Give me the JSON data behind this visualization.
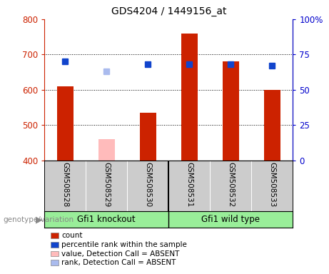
{
  "title": "GDS4204 / 1449156_at",
  "samples": [
    "GSM508528",
    "GSM508529",
    "GSM508530",
    "GSM508531",
    "GSM508532",
    "GSM508533"
  ],
  "count_values": [
    610,
    null,
    535,
    760,
    680,
    600
  ],
  "count_absent_values": [
    null,
    460,
    null,
    null,
    null,
    null
  ],
  "rank_values": [
    70,
    null,
    68,
    68,
    68,
    67
  ],
  "rank_absent_values": [
    null,
    63,
    null,
    null,
    null,
    null
  ],
  "left_ylim": [
    400,
    800
  ],
  "right_ylim": [
    0,
    100
  ],
  "left_yticks": [
    400,
    500,
    600,
    700,
    800
  ],
  "right_yticks": [
    0,
    25,
    50,
    75,
    100
  ],
  "right_yticklabels": [
    "0",
    "25",
    "50",
    "75",
    "100%"
  ],
  "bar_color": "#cc2200",
  "bar_absent_color": "#ffbbbb",
  "rank_color": "#1144cc",
  "rank_absent_color": "#aabbee",
  "group1_label": "Gfi1 knockout",
  "group2_label": "Gfi1 wild type",
  "group1_indices": [
    0,
    1,
    2
  ],
  "group2_indices": [
    3,
    4,
    5
  ],
  "group_bg_color": "#99ee99",
  "sample_area_color": "#cccccc",
  "legend_items": [
    {
      "label": "count",
      "color": "#cc2200"
    },
    {
      "label": "percentile rank within the sample",
      "color": "#1144cc"
    },
    {
      "label": "value, Detection Call = ABSENT",
      "color": "#ffbbbb"
    },
    {
      "label": "rank, Detection Call = ABSENT",
      "color": "#aabbee"
    }
  ],
  "genotype_label": "genotype/variation",
  "bar_width": 0.4,
  "rank_marker_size": 6,
  "left_axis_color": "#cc2200",
  "right_axis_color": "#0000cc"
}
